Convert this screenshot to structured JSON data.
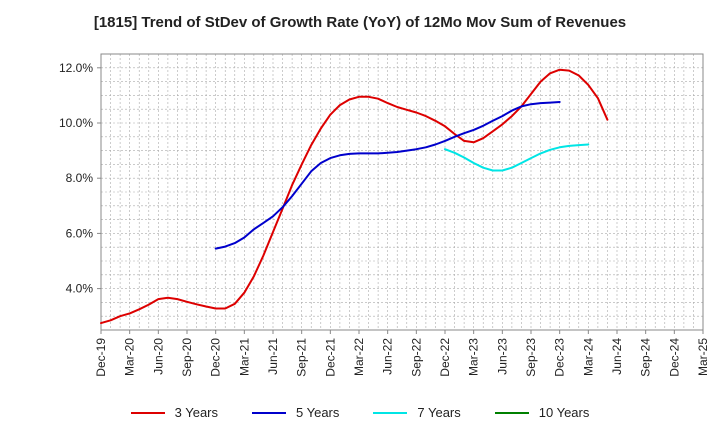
{
  "chart_data": {
    "type": "line",
    "title": "[1815]  Trend of StDev of Growth Rate (YoY) of 12Mo Mov Sum of Revenues",
    "xlabel": "",
    "ylabel": "",
    "ylim": [
      2.5,
      12.5
    ],
    "y_ticks": [
      4.0,
      6.0,
      8.0,
      10.0,
      12.0
    ],
    "y_tick_labels": [
      "4.0%",
      "6.0%",
      "8.0%",
      "10.0%",
      "12.0%"
    ],
    "x_tick_labels": [
      "Dec-19",
      "Mar-20",
      "Jun-20",
      "Sep-20",
      "Dec-20",
      "Mar-21",
      "Jun-21",
      "Sep-21",
      "Dec-21",
      "Mar-22",
      "Jun-22",
      "Sep-22",
      "Dec-22",
      "Mar-23",
      "Jun-23",
      "Sep-23",
      "Dec-23",
      "Mar-24",
      "Jun-24",
      "Sep-24",
      "Dec-24",
      "Mar-25"
    ],
    "grid": true,
    "series": [
      {
        "name": "3 Years",
        "color": "#dd0000",
        "points": [
          [
            0,
            2.75
          ],
          [
            1,
            2.85
          ],
          [
            2,
            3.0
          ],
          [
            3,
            3.1
          ],
          [
            4,
            3.25
          ],
          [
            5,
            3.42
          ],
          [
            6,
            3.62
          ],
          [
            7,
            3.67
          ],
          [
            8,
            3.62
          ],
          [
            9,
            3.52
          ],
          [
            10,
            3.43
          ],
          [
            11,
            3.35
          ],
          [
            12,
            3.28
          ],
          [
            13,
            3.28
          ],
          [
            14,
            3.45
          ],
          [
            15,
            3.85
          ],
          [
            16,
            4.45
          ],
          [
            17,
            5.2
          ],
          [
            18,
            6.05
          ],
          [
            19,
            6.9
          ],
          [
            20,
            7.75
          ],
          [
            21,
            8.5
          ],
          [
            22,
            9.2
          ],
          [
            23,
            9.8
          ],
          [
            24,
            10.3
          ],
          [
            25,
            10.65
          ],
          [
            26,
            10.85
          ],
          [
            27,
            10.95
          ],
          [
            28,
            10.95
          ],
          [
            29,
            10.88
          ],
          [
            30,
            10.72
          ],
          [
            31,
            10.58
          ],
          [
            32,
            10.48
          ],
          [
            33,
            10.38
          ],
          [
            34,
            10.25
          ],
          [
            35,
            10.08
          ],
          [
            36,
            9.88
          ],
          [
            37,
            9.6
          ],
          [
            38,
            9.35
          ],
          [
            39,
            9.3
          ],
          [
            40,
            9.45
          ],
          [
            41,
            9.7
          ],
          [
            42,
            9.95
          ],
          [
            43,
            10.25
          ],
          [
            44,
            10.6
          ],
          [
            45,
            11.05
          ],
          [
            46,
            11.5
          ],
          [
            47,
            11.8
          ],
          [
            48,
            11.93
          ],
          [
            49,
            11.9
          ],
          [
            50,
            11.72
          ],
          [
            51,
            11.38
          ],
          [
            52,
            10.9
          ],
          [
            53,
            10.12
          ]
        ]
      },
      {
        "name": "5 Years",
        "color": "#0000cc",
        "points": [
          [
            12,
            5.45
          ],
          [
            13,
            5.52
          ],
          [
            14,
            5.65
          ],
          [
            15,
            5.85
          ],
          [
            16,
            6.15
          ],
          [
            17,
            6.38
          ],
          [
            18,
            6.62
          ],
          [
            19,
            6.95
          ],
          [
            20,
            7.35
          ],
          [
            21,
            7.8
          ],
          [
            22,
            8.25
          ],
          [
            23,
            8.55
          ],
          [
            24,
            8.73
          ],
          [
            25,
            8.83
          ],
          [
            26,
            8.88
          ],
          [
            27,
            8.9
          ],
          [
            28,
            8.9
          ],
          [
            29,
            8.9
          ],
          [
            30,
            8.92
          ],
          [
            31,
            8.95
          ],
          [
            32,
            9.0
          ],
          [
            33,
            9.05
          ],
          [
            34,
            9.12
          ],
          [
            35,
            9.22
          ],
          [
            36,
            9.35
          ],
          [
            37,
            9.5
          ],
          [
            38,
            9.63
          ],
          [
            39,
            9.75
          ],
          [
            40,
            9.9
          ],
          [
            41,
            10.08
          ],
          [
            42,
            10.25
          ],
          [
            43,
            10.45
          ],
          [
            44,
            10.6
          ],
          [
            45,
            10.68
          ],
          [
            46,
            10.72
          ],
          [
            47,
            10.74
          ],
          [
            48,
            10.76
          ]
        ]
      },
      {
        "name": "7 Years",
        "color": "#00e5e5",
        "points": [
          [
            36,
            9.05
          ],
          [
            37,
            8.92
          ],
          [
            38,
            8.75
          ],
          [
            39,
            8.55
          ],
          [
            40,
            8.38
          ],
          [
            41,
            8.28
          ],
          [
            42,
            8.28
          ],
          [
            43,
            8.38
          ],
          [
            44,
            8.55
          ],
          [
            45,
            8.73
          ],
          [
            46,
            8.9
          ],
          [
            47,
            9.03
          ],
          [
            48,
            9.12
          ],
          [
            49,
            9.17
          ],
          [
            50,
            9.2
          ],
          [
            51,
            9.22
          ]
        ]
      },
      {
        "name": "10 Years",
        "color": "#008000",
        "points": []
      }
    ]
  }
}
